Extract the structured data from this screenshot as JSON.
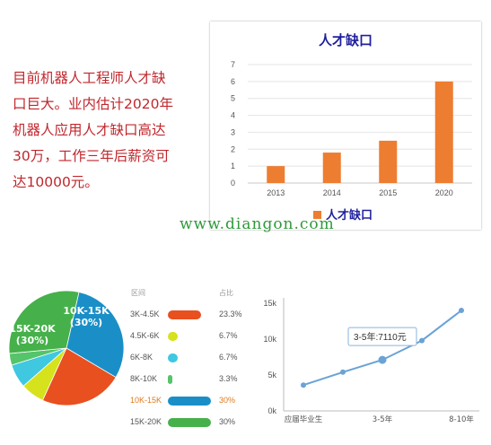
{
  "intro": {
    "lines": [
      "目前机器人工程师人才缺",
      "口巨大。业内估计2020年",
      "机器人应用人才缺口高达",
      "30万，工作三年后薪资可",
      "达10000元。"
    ]
  },
  "watermark": "www.diangon.com",
  "chart_data": [
    {
      "type": "bar",
      "title": "人才缺口",
      "categories": [
        "2013",
        "2014",
        "2015",
        "2020"
      ],
      "series": [
        {
          "name": "人才缺口",
          "values": [
            1,
            1.8,
            2.5,
            6
          ]
        }
      ],
      "ylim": [
        0,
        7
      ],
      "yticks": [
        0,
        1,
        2,
        3,
        4,
        5,
        6,
        7
      ],
      "grid": true,
      "legend": "bottom",
      "color": "#ed7d31"
    },
    {
      "type": "pie",
      "slices": [
        {
          "label": "10K-15K",
          "value": 30,
          "text": "10K-15K",
          "pct_text": "(30%)",
          "color": "#1a8fc7"
        },
        {
          "label": "3K-4.5K",
          "value": 23.3,
          "color": "#e8501f"
        },
        {
          "label": "4.5K-6K",
          "value": 6.7,
          "color": "#d6e21c"
        },
        {
          "label": "6K-8K",
          "value": 6.7,
          "color": "#3fc8e0"
        },
        {
          "label": "8K-10K",
          "value": 3.3,
          "color": "#55c46a"
        },
        {
          "label": "15K-20K",
          "value": 30,
          "text": "15K-20K",
          "pct_text": "(30%)",
          "color": "#46b14a"
        }
      ]
    },
    {
      "type": "table",
      "headers": [
        "区间",
        "占比"
      ],
      "rows": [
        {
          "range": "3K-4.5K",
          "pct": "23.3%",
          "value": 23.3,
          "color": "#e8501f",
          "highlight": false
        },
        {
          "range": "4.5K-6K",
          "pct": "6.7%",
          "value": 6.7,
          "color": "#d6e21c",
          "highlight": false
        },
        {
          "range": "6K-8K",
          "pct": "6.7%",
          "value": 6.7,
          "color": "#3fc8e0",
          "highlight": false
        },
        {
          "range": "8K-10K",
          "pct": "3.3%",
          "value": 3.3,
          "color": "#55c46a",
          "highlight": false
        },
        {
          "range": "10K-15K",
          "pct": "30%",
          "value": 30,
          "color": "#1a8fc7",
          "highlight": true
        },
        {
          "range": "15K-20K",
          "pct": "30%",
          "value": 30,
          "color": "#46b14a",
          "highlight": false
        }
      ],
      "bar_max": 30
    },
    {
      "type": "line",
      "x": [
        "应届毕业生",
        "",
        "3-5年",
        "",
        "8-10年"
      ],
      "xticks": [
        "应届毕业生",
        "3-5年",
        "8-10年"
      ],
      "series": [
        {
          "values": [
            3600,
            5400,
            7110,
            9800,
            14000
          ]
        }
      ],
      "ylim": [
        0,
        15000
      ],
      "yticks": [
        "0k",
        "5k",
        "10k",
        "15k"
      ],
      "tooltip": {
        "text": "3-5年:7110元",
        "index": 2
      },
      "color": "#6aa3d6"
    }
  ]
}
